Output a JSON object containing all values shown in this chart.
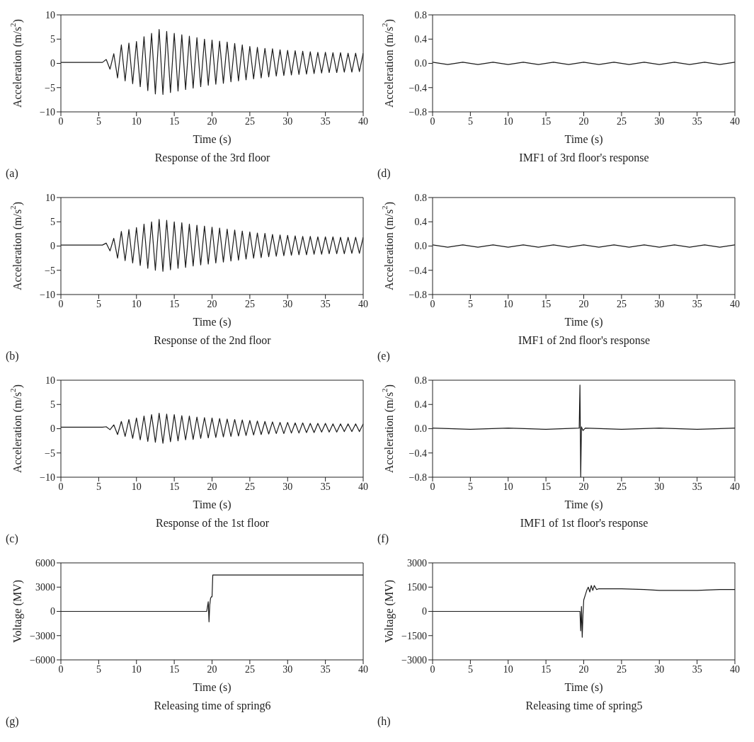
{
  "chart_data": [
    {
      "type": "line",
      "title": "Response of the 3rd floor",
      "xlabel": "Time (s)",
      "ylabel": "Acceleration (m/s$^{2}$)",
      "annotations": [
        "(a)"
      ],
      "color": "#1a1a1a",
      "xlim": [
        0,
        40
      ],
      "xticks": [
        0,
        5,
        10,
        15,
        20,
        25,
        30,
        35,
        40
      ],
      "ylim": [
        -10,
        10
      ],
      "yticks": [
        {
          "value": -10,
          "label": "−10"
        },
        {
          "value": -5,
          "label": "−5"
        },
        0,
        5,
        10
      ],
      "x": [
        0,
        5.5,
        6,
        6.5,
        7,
        7.5,
        8,
        8.5,
        9,
        9.5,
        10,
        10.5,
        11,
        11.5,
        12,
        12.5,
        13,
        13.5,
        14,
        14.5,
        15,
        15.5,
        16,
        16.5,
        17,
        17.5,
        18,
        18.5,
        19,
        19.5,
        20,
        20.5,
        21,
        21.5,
        22,
        22.5,
        23,
        23.5,
        24,
        24.5,
        25,
        25.5,
        26,
        26.5,
        27,
        27.5,
        28,
        28.5,
        29,
        29.5,
        30,
        30.5,
        31,
        31.5,
        32,
        32.5,
        33,
        33.5,
        34,
        34.5,
        35,
        35.5,
        36,
        36.5,
        37,
        37.5,
        38,
        38.5,
        39,
        39.5,
        40
      ],
      "values": [
        0.2,
        0.2,
        0.8,
        -1.2,
        2.0,
        -3.0,
        3.8,
        -3.6,
        4.2,
        -4.2,
        4.5,
        -4.8,
        5.5,
        -5.6,
        6.2,
        -6.3,
        7.0,
        -6.4,
        6.6,
        -6.0,
        6.2,
        -5.7,
        5.9,
        -5.4,
        5.6,
        -5.1,
        5.3,
        -4.8,
        5.0,
        -4.5,
        4.8,
        -4.3,
        4.6,
        -4.1,
        4.4,
        -3.8,
        4.1,
        -3.6,
        3.8,
        -3.4,
        3.5,
        -3.2,
        3.3,
        -3.0,
        3.1,
        -2.8,
        3.0,
        -2.6,
        2.8,
        -2.5,
        2.7,
        -2.4,
        2.6,
        -2.3,
        2.5,
        -2.2,
        2.4,
        -2.1,
        2.3,
        -2.0,
        2.3,
        -1.9,
        2.2,
        -1.9,
        2.2,
        -1.8,
        2.1,
        -1.8,
        2.1,
        -1.7,
        2.1
      ]
    },
    {
      "type": "line",
      "title": "IMF1 of 3rd floor's response",
      "xlabel": "Time (s)",
      "ylabel": "Acceleration (m/s$^{2}$)",
      "annotations": [
        "(d)"
      ],
      "color": "#1a1a1a",
      "xlim": [
        0,
        40
      ],
      "xticks": [
        0,
        5,
        10,
        15,
        20,
        25,
        30,
        35,
        40
      ],
      "ylim": [
        -0.8,
        0.8
      ],
      "yticks": [
        {
          "value": -0.8,
          "label": "−0.8"
        },
        {
          "value": -0.4,
          "label": "−0.4"
        },
        {
          "value": 0,
          "label": "0.0"
        },
        0.4,
        0.8
      ],
      "x": [
        0,
        2,
        4,
        6,
        8,
        10,
        12,
        14,
        16,
        18,
        20,
        22,
        24,
        26,
        28,
        30,
        32,
        34,
        36,
        38,
        40
      ],
      "values": [
        0.02,
        -0.02,
        0.02,
        -0.02,
        0.02,
        -0.02,
        0.02,
        -0.02,
        0.02,
        -0.02,
        0.02,
        -0.02,
        0.02,
        -0.02,
        0.02,
        -0.02,
        0.02,
        -0.02,
        0.02,
        -0.02,
        0.02
      ]
    },
    {
      "type": "line",
      "title": "Response of the 2nd floor",
      "xlabel": "Time (s)",
      "ylabel": "Acceleration (m/s$^{2}$)",
      "annotations": [
        "(b)"
      ],
      "color": "#1a1a1a",
      "xlim": [
        0,
        40
      ],
      "xticks": [
        0,
        5,
        10,
        15,
        20,
        25,
        30,
        35,
        40
      ],
      "ylim": [
        -10,
        10
      ],
      "yticks": [
        {
          "value": -10,
          "label": "−10"
        },
        {
          "value": -5,
          "label": "−5"
        },
        0,
        5,
        10
      ],
      "x": [
        0,
        5.5,
        6,
        6.5,
        7,
        7.5,
        8,
        8.5,
        9,
        9.5,
        10,
        10.5,
        11,
        11.5,
        12,
        12.5,
        13,
        13.5,
        14,
        14.5,
        15,
        15.5,
        16,
        16.5,
        17,
        17.5,
        18,
        18.5,
        19,
        19.5,
        20,
        20.5,
        21,
        21.5,
        22,
        22.5,
        23,
        23.5,
        24,
        24.5,
        25,
        25.5,
        26,
        26.5,
        27,
        27.5,
        28,
        28.5,
        29,
        29.5,
        30,
        30.5,
        31,
        31.5,
        32,
        32.5,
        33,
        33.5,
        34,
        34.5,
        35,
        35.5,
        36,
        36.5,
        37,
        37.5,
        38,
        38.5,
        39,
        39.5,
        40
      ],
      "values": [
        0.2,
        0.2,
        0.6,
        -1.0,
        1.6,
        -2.5,
        3.0,
        -3.0,
        3.4,
        -3.5,
        3.8,
        -4.0,
        4.5,
        -4.6,
        5.0,
        -5.0,
        5.5,
        -5.2,
        5.3,
        -4.9,
        5.0,
        -4.6,
        4.8,
        -4.4,
        4.5,
        -4.1,
        4.3,
        -3.9,
        4.1,
        -3.7,
        3.9,
        -3.5,
        3.7,
        -3.3,
        3.5,
        -3.1,
        3.3,
        -2.9,
        3.1,
        -2.7,
        2.9,
        -2.5,
        2.7,
        -2.4,
        2.6,
        -2.2,
        2.4,
        -2.1,
        2.3,
        -2.0,
        2.2,
        -1.9,
        2.1,
        -1.8,
        2.0,
        -1.8,
        2.0,
        -1.7,
        1.9,
        -1.7,
        1.9,
        -1.6,
        1.9,
        -1.6,
        1.8,
        -1.6,
        1.8,
        -1.5,
        1.8,
        -1.5,
        1.8
      ]
    },
    {
      "type": "line",
      "title": "IMF1 of 2nd floor's response",
      "xlabel": "Time (s)",
      "ylabel": "Acceleration (m/s$^{2}$)",
      "annotations": [
        "(e)"
      ],
      "color": "#1a1a1a",
      "xlim": [
        0,
        40
      ],
      "xticks": [
        0,
        5,
        10,
        15,
        20,
        25,
        30,
        35,
        40
      ],
      "ylim": [
        -0.8,
        0.8
      ],
      "yticks": [
        {
          "value": -0.8,
          "label": "−0.8"
        },
        {
          "value": -0.4,
          "label": "−0.4"
        },
        {
          "value": 0,
          "label": "0.0"
        },
        0.4,
        0.8
      ],
      "x": [
        0,
        2,
        4,
        6,
        8,
        10,
        12,
        14,
        16,
        18,
        20,
        22,
        24,
        26,
        28,
        30,
        32,
        34,
        36,
        38,
        40
      ],
      "values": [
        0.02,
        -0.02,
        0.02,
        -0.02,
        0.02,
        -0.02,
        0.02,
        -0.02,
        0.02,
        -0.02,
        0.02,
        -0.02,
        0.02,
        -0.02,
        0.02,
        -0.02,
        0.02,
        -0.02,
        0.02,
        -0.02,
        0.02
      ]
    },
    {
      "type": "line",
      "title": "Response of the 1st floor",
      "xlabel": "Time (s)",
      "ylabel": "Acceleration (m/s$^{2}$)",
      "annotations": [
        "(c)"
      ],
      "color": "#1a1a1a",
      "xlim": [
        0,
        40
      ],
      "xticks": [
        0,
        5,
        10,
        15,
        20,
        25,
        30,
        35,
        40
      ],
      "ylim": [
        -10,
        10
      ],
      "yticks": [
        {
          "value": -10,
          "label": "−10"
        },
        {
          "value": -5,
          "label": "−5"
        },
        0,
        5,
        10
      ],
      "x": [
        0,
        5.5,
        6,
        6.5,
        7,
        7.5,
        8,
        8.5,
        9,
        9.5,
        10,
        10.5,
        11,
        11.5,
        12,
        12.5,
        13,
        13.5,
        14,
        14.5,
        15,
        15.5,
        16,
        16.5,
        17,
        17.5,
        18,
        18.5,
        19,
        19.5,
        20,
        20.5,
        21,
        21.5,
        22,
        22.5,
        23,
        23.5,
        24,
        24.5,
        25,
        25.5,
        26,
        26.5,
        27,
        27.5,
        28,
        28.5,
        29,
        29.5,
        30,
        30.5,
        31,
        31.5,
        32,
        32.5,
        33,
        33.5,
        34,
        34.5,
        35,
        35.5,
        36,
        36.5,
        37,
        37.5,
        38,
        38.5,
        39,
        39.5,
        40
      ],
      "values": [
        0.3,
        0.3,
        0.4,
        -0.2,
        0.8,
        -1.2,
        1.5,
        -1.6,
        1.9,
        -2.0,
        2.2,
        -2.3,
        2.6,
        -2.6,
        2.9,
        -2.8,
        3.2,
        -3.0,
        3.0,
        -2.7,
        2.9,
        -2.5,
        2.7,
        -2.3,
        2.6,
        -2.2,
        2.4,
        -2.0,
        2.3,
        -1.9,
        2.2,
        -1.8,
        2.1,
        -1.7,
        2.0,
        -1.6,
        1.9,
        -1.5,
        1.8,
        -1.4,
        1.7,
        -1.3,
        1.6,
        -1.2,
        1.5,
        -1.1,
        1.4,
        -1.0,
        1.3,
        -1.0,
        1.3,
        -0.9,
        1.2,
        -0.9,
        1.2,
        -0.8,
        1.1,
        -0.8,
        1.1,
        -0.7,
        1.1,
        -0.7,
        1.0,
        -0.7,
        1.0,
        -0.6,
        1.0,
        -0.6,
        1.0,
        -0.6,
        1.0
      ]
    },
    {
      "type": "line",
      "title": "IMF1 of 1st floor's response",
      "xlabel": "Time (s)",
      "ylabel": "Acceleration (m/s$^{2}$)",
      "annotations": [
        "(f)"
      ],
      "color": "#1a1a1a",
      "xlim": [
        0,
        40
      ],
      "xticks": [
        0,
        5,
        10,
        15,
        20,
        25,
        30,
        35,
        40
      ],
      "ylim": [
        -0.8,
        0.8
      ],
      "yticks": [
        {
          "value": -0.8,
          "label": "−0.8"
        },
        {
          "value": -0.4,
          "label": "−0.4"
        },
        {
          "value": 0,
          "label": "0.0"
        },
        0.4,
        0.8
      ],
      "x": [
        0,
        5,
        10,
        15,
        19.4,
        19.5,
        19.6,
        19.7,
        19.9,
        20.2,
        25,
        30,
        35,
        40
      ],
      "values": [
        0.01,
        -0.01,
        0.01,
        -0.01,
        0.01,
        0.72,
        -0.8,
        0.03,
        -0.03,
        0.01,
        -0.01,
        0.01,
        -0.01,
        0.01
      ]
    },
    {
      "type": "line",
      "title": "Releasing time of spring6",
      "xlabel": "Time (s)",
      "ylabel": "Voltage (MV)",
      "annotations": [
        "(g)"
      ],
      "color": "#1a1a1a",
      "xlim": [
        0,
        40
      ],
      "xticks": [
        0,
        5,
        10,
        15,
        20,
        25,
        30,
        35,
        40
      ],
      "ylim": [
        -6000,
        6000
      ],
      "yticks": [
        {
          "value": -6000,
          "label": "−6000"
        },
        {
          "value": -3000,
          "label": "−3000"
        },
        0,
        3000,
        6000
      ],
      "x": [
        0,
        19.3,
        19.5,
        19.6,
        19.7,
        19.8,
        19.9,
        20.0,
        20.1,
        40
      ],
      "values": [
        0,
        0,
        1200,
        -1300,
        800,
        1600,
        1800,
        1800,
        4500,
        4500
      ]
    },
    {
      "type": "line",
      "title": "Releasing time of spring5",
      "xlabel": "Time (s)",
      "ylabel": "Voltage (MV)",
      "annotations": [
        "(h)"
      ],
      "color": "#1a1a1a",
      "xlim": [
        0,
        40
      ],
      "xticks": [
        0,
        5,
        10,
        15,
        20,
        25,
        30,
        35,
        40
      ],
      "ylim": [
        -3000,
        3000
      ],
      "yticks": [
        {
          "value": -3000,
          "label": "−3000"
        },
        {
          "value": -1500,
          "label": "−1500"
        },
        0,
        1500,
        3000
      ],
      "x": [
        0,
        19.5,
        19.6,
        19.7,
        19.8,
        19.9,
        20.0,
        20.2,
        20.4,
        20.6,
        20.8,
        21,
        21.2,
        21.4,
        21.7,
        22,
        25,
        28,
        30,
        35,
        38,
        40
      ],
      "values": [
        0,
        0,
        -1200,
        300,
        -1600,
        -200,
        700,
        1000,
        1300,
        1500,
        1200,
        1600,
        1300,
        1600,
        1350,
        1400,
        1400,
        1350,
        1300,
        1300,
        1350,
        1350
      ]
    }
  ]
}
